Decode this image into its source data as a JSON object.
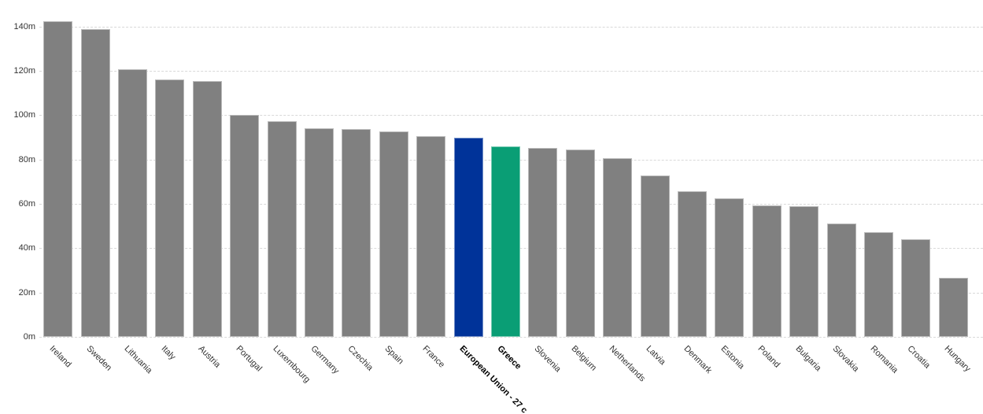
{
  "chart_data": {
    "type": "bar",
    "title": "",
    "xlabel": "",
    "ylabel": "",
    "unit_suffix": "m",
    "ylim": [
      0,
      140
    ],
    "ytick_interval": 20,
    "ytick_values": [
      0,
      20,
      40,
      60,
      80,
      100,
      120,
      140
    ],
    "ytick_labels": [
      "0m",
      "20m",
      "40m",
      "60m",
      "80m",
      "100m",
      "120m",
      "140m"
    ],
    "grid": "horizontal-dashed",
    "legend": "none",
    "x_label_rotation_deg": 45,
    "categories": [
      "Ireland",
      "Sweden",
      "Lithuania",
      "Italy",
      "Austria",
      "Portugal",
      "Luxembourg",
      "Germany",
      "Czechia",
      "Spain",
      "France",
      "European Union - 27 c",
      "Greece",
      "Slovenia",
      "Belgium",
      "Netherlands",
      "Latvia",
      "Denmark",
      "Estonia",
      "Poland",
      "Bulgaria",
      "Slovakia",
      "Romania",
      "Croatia",
      "Hungary"
    ],
    "values": [
      142.3,
      138.7,
      120.7,
      115.9,
      115.3,
      100.0,
      97.4,
      93.9,
      93.6,
      92.5,
      90.5,
      89.7,
      85.9,
      85.3,
      84.6,
      80.7,
      72.8,
      65.6,
      62.5,
      59.3,
      59.0,
      51.2,
      47.1,
      44.0,
      26.6
    ],
    "bar_color_default": "#808080",
    "highlights": [
      {
        "category": "European Union - 27 c",
        "color": "#003399",
        "bold_label": true
      },
      {
        "category": "Greece",
        "color": "#0a9e75",
        "bold_label": true
      }
    ]
  },
  "colors": {
    "background": "#ffffff",
    "bar_default": "#808080",
    "bar_highlight_blue": "#003399",
    "bar_highlight_green": "#0a9e75",
    "gridline": "#d9d9d9",
    "axis_label": "#333333"
  }
}
